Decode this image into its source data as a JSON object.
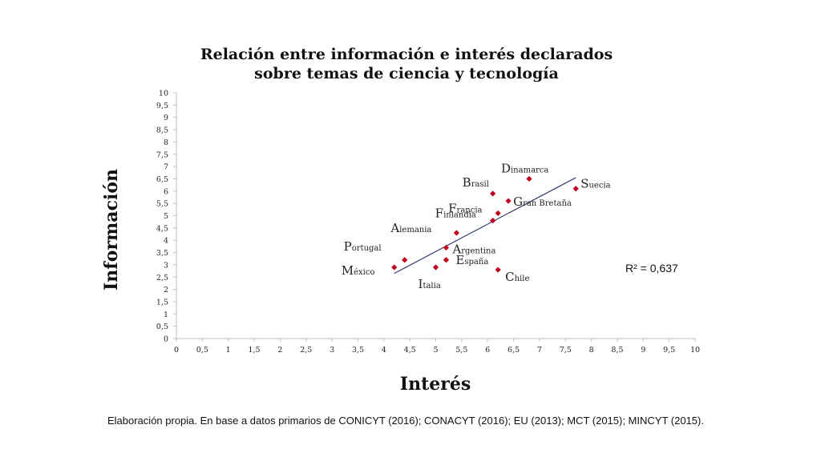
{
  "chart_data": {
    "type": "scatter",
    "title_lines": [
      "Relación entre información e interés declarados",
      "sobre temas de ciencia y tecnología"
    ],
    "xlabel": "Interés",
    "ylabel": "Información",
    "xlim": [
      0,
      10
    ],
    "ylim": [
      0,
      10
    ],
    "x_ticks": [
      "0",
      "0,5",
      "1",
      "1,5",
      "2",
      "2,5",
      "3",
      "3,5",
      "4",
      "4,5",
      "5",
      "5,5",
      "6",
      "6,5",
      "7",
      "7,5",
      "8",
      "8,5",
      "9",
      "9,5",
      "10"
    ],
    "y_ticks": [
      "0",
      "0,5",
      "1",
      "1,5",
      "2",
      "2,5",
      "3",
      "3,5",
      "4",
      "4,5",
      "5",
      "5,5",
      "6",
      "6,5",
      "7",
      "7,5",
      "8",
      "8,5",
      "9",
      "9,5",
      "10"
    ],
    "grid": false,
    "marker_color": "#c0001e",
    "trendline_color": "#2f3a6b",
    "points": [
      {
        "label": "México",
        "x": 4.2,
        "y": 2.9
      },
      {
        "label": "Portugal",
        "x": 4.4,
        "y": 3.2
      },
      {
        "label": "Italia",
        "x": 5.0,
        "y": 2.9
      },
      {
        "label": "España",
        "x": 5.2,
        "y": 3.2
      },
      {
        "label": "Argentina",
        "x": 5.2,
        "y": 3.7
      },
      {
        "label": "Alemania",
        "x": 5.4,
        "y": 4.3
      },
      {
        "label": "Finlandia",
        "x": 6.1,
        "y": 4.8
      },
      {
        "label": "Francia",
        "x": 6.2,
        "y": 5.1
      },
      {
        "label": "Chile",
        "x": 6.2,
        "y": 2.8
      },
      {
        "label": "Brasil",
        "x": 6.1,
        "y": 5.9
      },
      {
        "label": "Gran Bretaña",
        "x": 6.4,
        "y": 5.6
      },
      {
        "label": "Dinamarca",
        "x": 6.8,
        "y": 6.5
      },
      {
        "label": "Suecia",
        "x": 7.7,
        "y": 6.1
      }
    ],
    "trendline": {
      "x": [
        4.2,
        7.7
      ],
      "y": [
        2.65,
        6.55
      ]
    },
    "r_squared_label": "R² = 0,637"
  },
  "source_note": "Elaboración propia. En base a datos primarios de CONICYT (2016); CONACYT (2016); EU (2013); MCT (2015); MINCYT (2015)."
}
